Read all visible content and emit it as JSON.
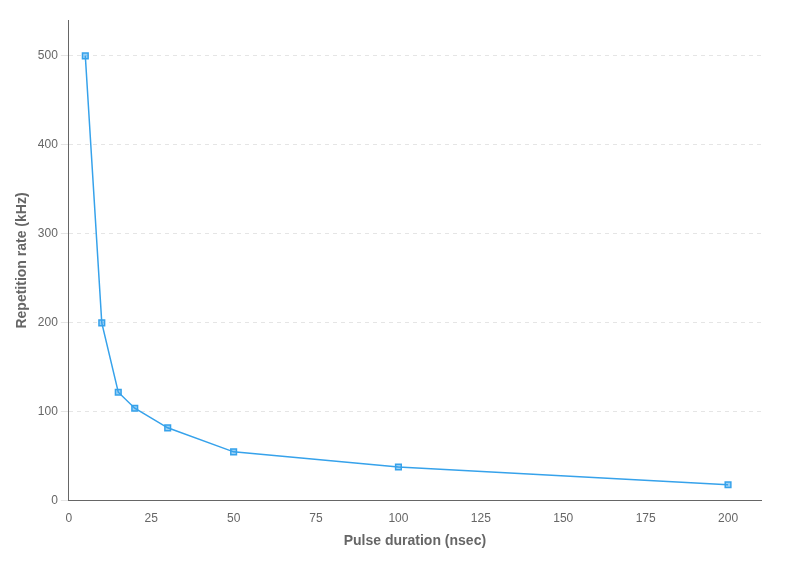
{
  "chart_data": {
    "type": "line",
    "x": [
      5,
      10,
      15,
      20,
      30,
      50,
      100,
      200
    ],
    "values": [
      500,
      200,
      122,
      104,
      82,
      55,
      38,
      18
    ],
    "xlabel": "Pulse duration (nsec)",
    "ylabel": "Repetition rate (kHz)",
    "xlim": [
      0,
      210
    ],
    "ylim": [
      0,
      540
    ],
    "xticks": [
      0,
      25,
      50,
      75,
      100,
      125,
      150,
      175,
      200
    ],
    "yticks": [
      0,
      100,
      200,
      300,
      400,
      500
    ],
    "marker": "square",
    "grid": true
  }
}
